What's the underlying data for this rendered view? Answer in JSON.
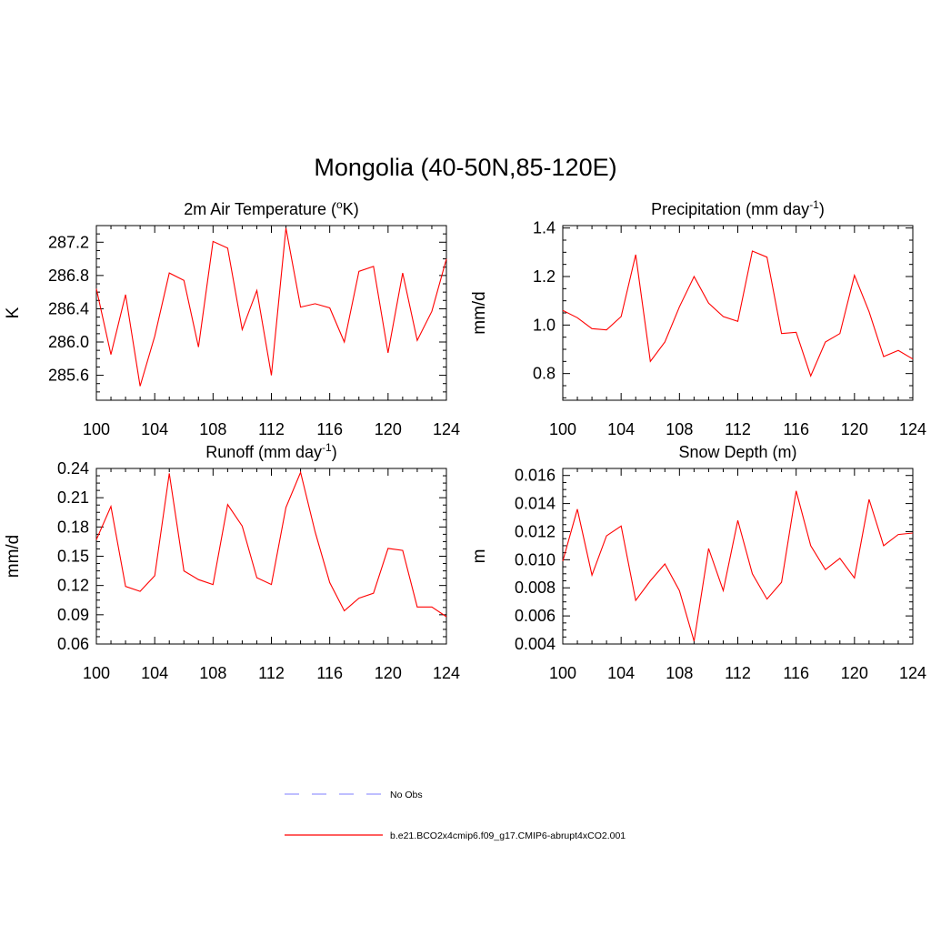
{
  "page_title": "Mongolia (40-50N,85-120E)",
  "chart_data": [
    {
      "type": "line",
      "title_main": "2m Air Temperature (",
      "title_sup": "o",
      "title_tail": "K)",
      "ylabel": "K",
      "xlim": [
        100,
        124
      ],
      "ylim": [
        285.3,
        287.4
      ],
      "xticks": [
        "100",
        "104",
        "108",
        "112",
        "116",
        "120",
        "124"
      ],
      "yticks": [
        "285.6",
        "286.0",
        "286.4",
        "286.8",
        "287.2"
      ],
      "series": [
        {
          "color": "#ff0000",
          "x": [
            100,
            101,
            102,
            103,
            104,
            105,
            106,
            107,
            108,
            109,
            110,
            111,
            112,
            113,
            114,
            115,
            116,
            117,
            118,
            119,
            120,
            121,
            122,
            123,
            124
          ],
          "y": [
            286.64,
            285.85,
            286.57,
            285.47,
            286.07,
            286.83,
            286.74,
            285.94,
            287.21,
            287.13,
            286.15,
            286.62,
            285.6,
            287.37,
            286.42,
            286.46,
            286.41,
            286.0,
            286.85,
            286.91,
            285.87,
            286.83,
            286.02,
            286.37,
            287.0
          ]
        }
      ]
    },
    {
      "type": "line",
      "title_main": "Precipitation (mm day",
      "title_sup": "-1",
      "title_tail": ")",
      "ylabel": "mm/d",
      "xlim": [
        100,
        124
      ],
      "ylim": [
        0.69,
        1.41
      ],
      "xticks": [
        "100",
        "104",
        "108",
        "112",
        "116",
        "120",
        "124"
      ],
      "yticks": [
        "0.8",
        "1.0",
        "1.2",
        "1.4"
      ],
      "series": [
        {
          "color": "#ff0000",
          "x": [
            100,
            101,
            102,
            103,
            104,
            105,
            106,
            107,
            108,
            109,
            110,
            111,
            112,
            113,
            114,
            115,
            116,
            117,
            118,
            119,
            120,
            121,
            122,
            123,
            124
          ],
          "y": [
            1.06,
            1.03,
            0.985,
            0.98,
            1.035,
            1.29,
            0.85,
            0.93,
            1.075,
            1.2,
            1.09,
            1.035,
            1.015,
            1.305,
            1.28,
            0.965,
            0.97,
            0.79,
            0.93,
            0.965,
            1.205,
            1.055,
            0.87,
            0.895,
            0.86
          ]
        }
      ]
    },
    {
      "type": "line",
      "title_main": "Runoff (mm day",
      "title_sup": "-1",
      "title_tail": ")",
      "ylabel": "mm/d",
      "xlim": [
        100,
        124
      ],
      "ylim": [
        0.06,
        0.24
      ],
      "xticks": [
        "100",
        "104",
        "108",
        "112",
        "116",
        "120",
        "124"
      ],
      "yticks": [
        "0.06",
        "0.09",
        "0.12",
        "0.15",
        "0.18",
        "0.21",
        "0.24"
      ],
      "series": [
        {
          "color": "#ff0000",
          "x": [
            100,
            101,
            102,
            103,
            104,
            105,
            106,
            107,
            108,
            109,
            110,
            111,
            112,
            113,
            114,
            115,
            116,
            117,
            118,
            119,
            120,
            121,
            122,
            123,
            124
          ],
          "y": [
            0.167,
            0.201,
            0.119,
            0.114,
            0.13,
            0.235,
            0.135,
            0.126,
            0.121,
            0.203,
            0.181,
            0.128,
            0.121,
            0.2,
            0.236,
            0.175,
            0.123,
            0.094,
            0.107,
            0.112,
            0.158,
            0.156,
            0.098,
            0.098,
            0.088
          ]
        }
      ]
    },
    {
      "type": "line",
      "title_main": "Snow Depth (m)",
      "title_sup": "",
      "title_tail": "",
      "ylabel": "m",
      "xlim": [
        100,
        124
      ],
      "ylim": [
        0.004,
        0.0165
      ],
      "xticks": [
        "100",
        "104",
        "108",
        "112",
        "116",
        "120",
        "124"
      ],
      "yticks": [
        "0.004",
        "0.006",
        "0.008",
        "0.010",
        "0.012",
        "0.014",
        "0.016"
      ],
      "series": [
        {
          "color": "#ff0000",
          "x": [
            100,
            101,
            102,
            103,
            104,
            105,
            106,
            107,
            108,
            109,
            110,
            111,
            112,
            113,
            114,
            115,
            116,
            117,
            118,
            119,
            120,
            121,
            122,
            123,
            124
          ],
          "y": [
            0.0099,
            0.0136,
            0.0089,
            0.0117,
            0.0124,
            0.0071,
            0.0085,
            0.0097,
            0.0078,
            0.0042,
            0.0108,
            0.0078,
            0.0128,
            0.009,
            0.0072,
            0.0084,
            0.0149,
            0.011,
            0.0093,
            0.0101,
            0.0087,
            0.0143,
            0.011,
            0.0118,
            0.0119
          ]
        }
      ]
    }
  ],
  "legend": [
    {
      "label": "No Obs",
      "color": "#9999ff",
      "style": "dashed"
    },
    {
      "label": "b.e21.BCO2x4cmip6.f09_g17.CMIP6-abrupt4xCO2.001",
      "color": "#ff0000",
      "style": "solid"
    }
  ]
}
